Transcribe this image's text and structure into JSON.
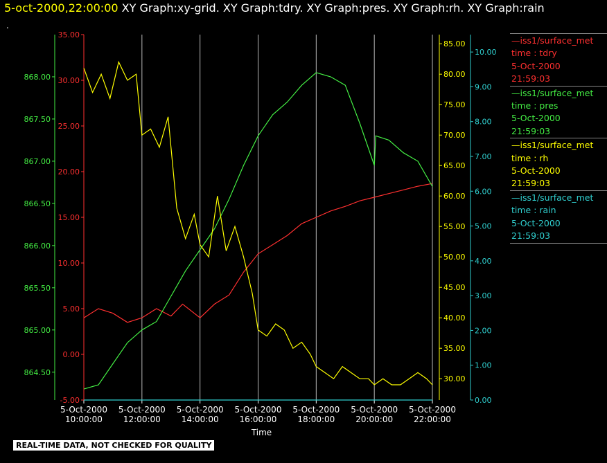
{
  "header": {
    "timestamp": "5-oct-2000,22:00:00",
    "graphs": "  XY Graph:xy-grid.  XY Graph:tdry.  XY Graph:pres.  XY Graph:rh.  XY Graph:rain",
    "dot": "."
  },
  "footer": {
    "notice": "REAL-TIME DATA, NOT CHECKED FOR QUALITY"
  },
  "legend": [
    {
      "name": "—iss1/surface_met",
      "var": "time : tdry",
      "date": "5-Oct-2000",
      "time": "21:59:03",
      "color": "#ff3030"
    },
    {
      "name": "—iss1/surface_met",
      "var": "time : pres",
      "date": "5-Oct-2000",
      "time": "21:59:03",
      "color": "#44ee44"
    },
    {
      "name": "—iss1/surface_met",
      "var": "time : rh",
      "date": "5-Oct-2000",
      "time": "21:59:03",
      "color": "#ffff00"
    },
    {
      "name": "—iss1/surface_met",
      "var": "time : rain",
      "date": "5-Oct-2000",
      "time": "21:59:03",
      "color": "#30d0d0"
    }
  ],
  "chart_data": {
    "type": "line",
    "xlabel": "Time",
    "x_ticks": [
      {
        "date": "5-Oct-2000",
        "time": "10:00:00",
        "hour": 10
      },
      {
        "date": "5-Oct-2000",
        "time": "12:00:00",
        "hour": 12
      },
      {
        "date": "5-Oct-2000",
        "time": "14:00:00",
        "hour": 14
      },
      {
        "date": "5-Oct-2000",
        "time": "16:00:00",
        "hour": 16
      },
      {
        "date": "5-Oct-2000",
        "time": "18:00:00",
        "hour": 18
      },
      {
        "date": "5-Oct-2000",
        "time": "20:00:00",
        "hour": 20
      },
      {
        "date": "5-Oct-2000",
        "time": "22:00:00",
        "hour": 22
      }
    ],
    "xlim": [
      10,
      22
    ],
    "grid": "vertical",
    "axes": {
      "pres": {
        "ylim": [
          864.17,
          868.5
        ],
        "ticks": [
          "864.50",
          "865.00",
          "865.50",
          "866.00",
          "866.50",
          "867.00",
          "867.50",
          "868.00"
        ],
        "color": "#44ee44",
        "side": "left-outer"
      },
      "tdry": {
        "ylim": [
          -5,
          35
        ],
        "ticks": [
          "-5.00",
          "0.00",
          "5.00",
          "10.00",
          "15.00",
          "20.00",
          "25.00",
          "30.00",
          "35.00"
        ],
        "color": "#ff3030",
        "side": "left-inner"
      },
      "rh": {
        "ylim": [
          26.5,
          86.5
        ],
        "ticks": [
          "30.00",
          "35.00",
          "40.00",
          "45.00",
          "50.00",
          "55.00",
          "60.00",
          "65.00",
          "70.00",
          "75.00",
          "80.00",
          "85.00"
        ],
        "color": "#ffff00",
        "side": "right-inner"
      },
      "rain": {
        "ylim": [
          0,
          10.5
        ],
        "ticks": [
          "0.00",
          "1.00",
          "2.00",
          "3.00",
          "4.00",
          "5.00",
          "6.00",
          "7.00",
          "8.00",
          "9.00",
          "10.00"
        ],
        "color": "#30d0d0",
        "side": "right-outer"
      }
    },
    "series": [
      {
        "name": "tdry",
        "axis": "tdry",
        "color": "#ff3030",
        "x": [
          10,
          10.5,
          11,
          11.5,
          12,
          12.5,
          13,
          13.4,
          14,
          14.5,
          15,
          15.5,
          16,
          16.5,
          17,
          17.5,
          18,
          18.5,
          19,
          19.5,
          20,
          20.5,
          21,
          21.5,
          22
        ],
        "y": [
          4,
          5,
          4.5,
          3.5,
          4,
          5,
          4.2,
          5.5,
          4,
          5.5,
          6.5,
          9,
          11,
          12,
          13,
          14.3,
          15,
          15.7,
          16.2,
          16.8,
          17.2,
          17.6,
          18,
          18.4,
          18.7
        ]
      },
      {
        "name": "pres",
        "axis": "pres",
        "color": "#44ee44",
        "x": [
          10,
          10.5,
          11,
          11.5,
          12,
          12.5,
          13,
          13.5,
          14,
          14.5,
          15,
          15.5,
          16,
          16.5,
          17,
          17.5,
          18,
          18.5,
          19,
          19.5,
          20,
          20.05,
          20.5,
          21,
          21.5,
          22
        ],
        "y": [
          864.3,
          864.35,
          864.6,
          864.85,
          865.0,
          865.1,
          865.4,
          865.7,
          865.95,
          866.2,
          866.55,
          866.95,
          867.3,
          867.55,
          867.7,
          867.9,
          868.05,
          868.0,
          867.9,
          867.45,
          866.95,
          867.3,
          867.25,
          867.1,
          867.0,
          866.7
        ]
      },
      {
        "name": "rh",
        "axis": "rh",
        "color": "#ffff00",
        "x": [
          10,
          10.3,
          10.6,
          10.9,
          11.2,
          11.5,
          11.8,
          12,
          12.3,
          12.6,
          12.9,
          13.2,
          13.5,
          13.8,
          14,
          14.3,
          14.6,
          14.9,
          15.2,
          15.5,
          15.8,
          16,
          16.3,
          16.6,
          16.9,
          17.2,
          17.5,
          17.8,
          18,
          18.3,
          18.6,
          18.9,
          19.2,
          19.5,
          19.8,
          20,
          20.3,
          20.6,
          20.9,
          21.2,
          21.5,
          21.8,
          22
        ],
        "y": [
          81,
          77,
          80,
          76,
          82,
          79,
          80,
          70,
          71,
          68,
          73,
          58,
          53,
          57,
          52,
          50,
          60,
          51,
          55,
          50,
          44,
          38,
          37,
          39,
          38,
          35,
          36,
          34,
          32,
          31,
          30,
          32,
          31,
          30,
          30,
          29,
          30,
          29,
          29,
          30,
          31,
          30,
          29
        ]
      },
      {
        "name": "rain",
        "axis": "rain",
        "color": "#30d0d0",
        "x": [
          10,
          22
        ],
        "y": [
          0,
          0
        ]
      }
    ]
  }
}
